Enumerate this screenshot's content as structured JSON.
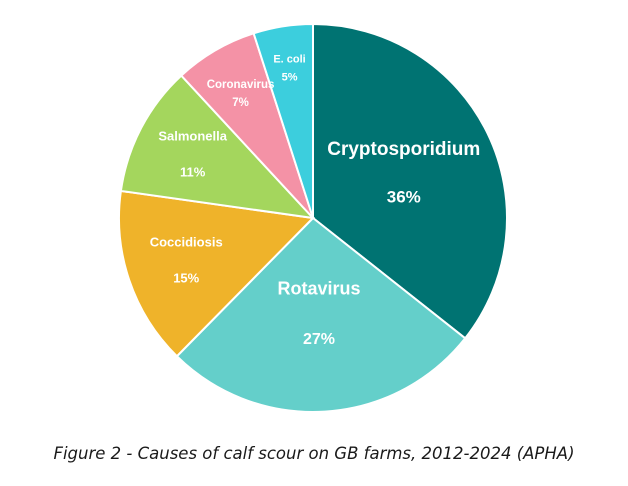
{
  "chart_data": {
    "type": "pie",
    "start_angle_deg": 0,
    "direction": "clockwise",
    "slices": [
      {
        "label": "Cryptosporidium",
        "value": 36,
        "value_label": "36%",
        "color": "#007372"
      },
      {
        "label": "Rotavirus",
        "value": 27,
        "value_label": "27%",
        "color": "#64cfca"
      },
      {
        "label": "Coccidiosis",
        "value": 15,
        "value_label": "15%",
        "color": "#efb32a"
      },
      {
        "label": "Salmonella",
        "value": 11,
        "value_label": "11%",
        "color": "#a4d65d"
      },
      {
        "label": "Coronavirus",
        "value": 7,
        "value_label": "7%",
        "color": "#f492a6"
      },
      {
        "label": "E. coli",
        "value": 5,
        "value_label": "5%",
        "color": "#3ccedd"
      }
    ],
    "legend": "none"
  },
  "caption": "Figure 2 - Causes of calf scour on GB farms, 2012-2024 (APHA)"
}
